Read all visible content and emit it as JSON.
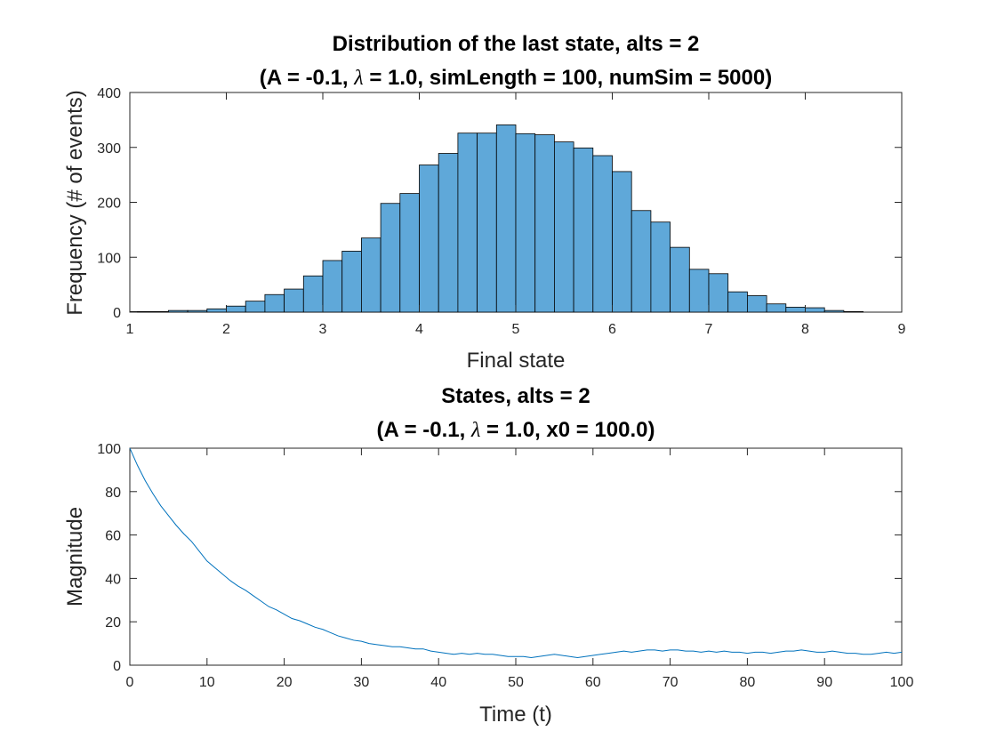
{
  "chart_data": [
    {
      "type": "bar",
      "title_line1": "Distribution of the last state, alts = 2",
      "title_line2_pre": "(A = -0.1, ",
      "title_lambda": "λ",
      "title_line2_post": " = 1.0, simLength = 100, numSim = 5000)",
      "xlabel": "Final state",
      "ylabel": "Frequency (# of events)",
      "xlim": [
        1,
        9
      ],
      "ylim": [
        0,
        400
      ],
      "xticks": [
        1,
        2,
        3,
        4,
        5,
        6,
        7,
        8,
        9
      ],
      "yticks": [
        0,
        100,
        200,
        300,
        400
      ],
      "bin_start": 1.0,
      "bin_width": 0.2,
      "values": [
        1,
        1,
        3,
        3,
        6,
        11,
        20,
        32,
        42,
        66,
        94,
        111,
        135,
        198,
        216,
        268,
        289,
        326,
        326,
        341,
        325,
        323,
        310,
        299,
        285,
        256,
        185,
        164,
        118,
        78,
        70,
        37,
        30,
        15,
        9,
        8,
        3,
        1
      ],
      "bar_color": "#5fa8d9",
      "grid": false
    },
    {
      "type": "line",
      "title_line1": "States, alts = 2",
      "title_line2_pre": "(A = -0.1, ",
      "title_lambda": "λ",
      "title_line2_post": " = 1.0, x0 = 100.0)",
      "xlabel": "Time (t)",
      "ylabel": "Magnitude",
      "xlim": [
        0,
        100
      ],
      "ylim": [
        0,
        100
      ],
      "xticks": [
        0,
        10,
        20,
        30,
        40,
        50,
        60,
        70,
        80,
        90,
        100
      ],
      "yticks": [
        0,
        20,
        40,
        60,
        80,
        100
      ],
      "x_start": 0,
      "x_step": 1,
      "values": [
        100,
        92,
        85,
        79,
        73.5,
        69,
        64.5,
        60.5,
        57,
        52.5,
        48,
        45,
        42,
        39,
        36.5,
        34.5,
        32,
        29.5,
        27,
        25.5,
        23.5,
        21.5,
        20.5,
        19,
        17.5,
        16.5,
        15,
        13.5,
        12.5,
        11.5,
        11,
        10,
        9.5,
        9,
        8.5,
        8.5,
        8,
        7.5,
        7.5,
        6.5,
        6,
        5.5,
        5,
        5.5,
        5,
        5.5,
        5,
        5,
        4.5,
        4,
        4,
        4,
        3.5,
        4,
        4.5,
        5,
        4.5,
        4,
        3.5,
        4,
        4.5,
        5,
        5.5,
        6,
        6.5,
        6,
        6.5,
        7,
        7,
        6.5,
        7,
        7,
        6.5,
        6.5,
        6,
        6.5,
        6,
        6.5,
        6,
        6,
        5.5,
        6,
        6,
        5.5,
        6,
        6.5,
        6.5,
        7,
        6.5,
        6,
        6,
        6.5,
        6,
        5.5,
        5.5,
        5,
        5,
        5.5,
        6,
        5.5,
        6
      ],
      "line_color": "#0072bd",
      "grid": false
    }
  ]
}
